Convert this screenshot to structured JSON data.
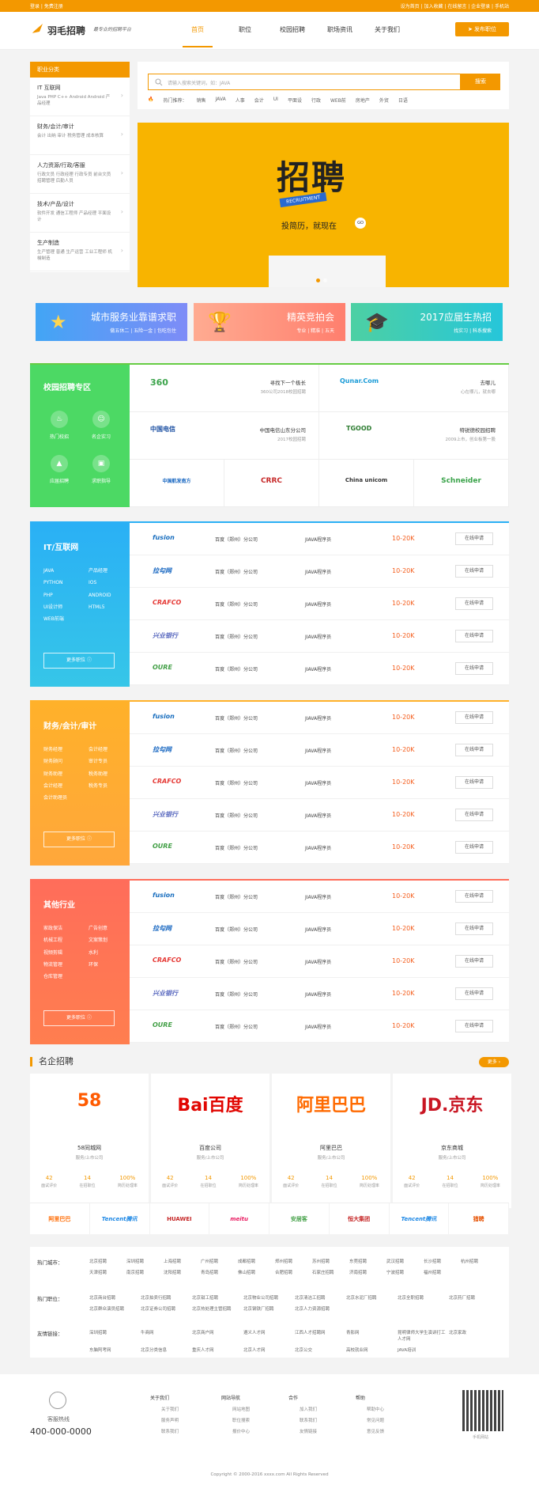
{
  "topbar": {
    "left": "登录 | 免费注册",
    "right": "设为首页 | 加入收藏 | 在线留言 | 企业登录 | 手机站"
  },
  "header": {
    "logo": "羽毛招聘",
    "slogan": "最专业的招聘平台",
    "nav": [
      "首页",
      "职位",
      "校园招聘",
      "职场资讯",
      "关于我们"
    ],
    "post_btn": "发布职位"
  },
  "sidebar": {
    "title": "职业分类",
    "cats": [
      {
        "t": "IT 互联网",
        "s": "Java  PHP  C++  Android  Android  产品经理"
      },
      {
        "t": "财务/会计/审计",
        "s": "会计  出纳  审计  税务管理  成本核算"
      },
      {
        "t": "人力资源/行政/客服",
        "s": "行政文员  行政经理  行政专员  前台文员  招聘管理  后勤人员"
      },
      {
        "t": "技术/产品/设计",
        "s": "软件开发  通信工程师  产品经理  平面设计"
      },
      {
        "t": "生产制造",
        "s": "生产管理  普通  生产运营  工业工程师  机械制造"
      }
    ]
  },
  "search": {
    "placeholder": "请输入搜索关键词，如：JAVA",
    "btn": "搜索",
    "hot_label": "热门推荐：",
    "hot": [
      "销售",
      "JAVA",
      "人事",
      "会计",
      "UI",
      "平面设",
      "行政",
      "WEB前",
      "房地产",
      "外贸",
      "日语"
    ]
  },
  "banner": {
    "title": "招聘",
    "sub": "RECRUITMENT",
    "tag": "投简历，就现在",
    "go": "GO"
  },
  "promos": [
    {
      "t": "城市服务业靠谱求职",
      "s": "做五休二 | 五险一金 | 包吃包住",
      "bg": "#3aa0ff"
    },
    {
      "t": "精英竞拍会",
      "s": "专业 | 精准 | 五天",
      "bg": "#ff8a65"
    },
    {
      "t": "2017应届生热招",
      "s": "找实习 | 科系搜索",
      "bg": "#26c6b0"
    }
  ],
  "campus": {
    "title": "校园招聘专区",
    "icons": [
      "热门校招",
      "名企实习",
      "应届招聘",
      "求职指导"
    ],
    "companies": [
      {
        "logo": "360",
        "name": "寻找下一个极长",
        "sub": "360公司2018校园招聘"
      },
      {
        "logo": "Qunar.Com",
        "name": "去哪儿",
        "sub": "心在哪儿，就去哪"
      },
      {
        "logo": "中国电信",
        "name": "中国电信山东分公司",
        "sub": "2017校园招聘"
      },
      {
        "logo": "TGOOD",
        "name": "特锐德校园招聘",
        "sub": "2009上市，创业板第一股"
      },
      {
        "logo": "中国航发南方"
      },
      {
        "logo": "CRRC"
      },
      {
        "logo": "China unicom"
      },
      {
        "logo": "Schneider"
      }
    ]
  },
  "sections": [
    {
      "title": "IT/互联网",
      "color1": "#2ab0f5",
      "color2": "#36c6e8",
      "items": [
        "JAVA",
        "产品经理",
        "PYTHON",
        "IOS",
        "PHP",
        "ANDROID",
        "UI设计师",
        "HTML5",
        "WEB前端"
      ],
      "more": "更多职位"
    },
    {
      "title": "财务/会计/审计",
      "color1": "#ffb12a",
      "color2": "#ffa73b",
      "items": [
        "财务经理",
        "会计经理",
        "财务顾问",
        "审计专员",
        "财务助理",
        "税务助理",
        "会计经理",
        "税务专员",
        "会计助理员"
      ],
      "more": "更多职位"
    },
    {
      "title": "其他行业",
      "color1": "#ff6d5a",
      "color2": "#ff7e4f",
      "items": [
        "家政保洁",
        "广告创意",
        "机械工程",
        "文案策划",
        "视频剪辑",
        "水利",
        "物流管理",
        "环保",
        "仓库管理"
      ],
      "more": "更多职位"
    }
  ],
  "jobs": [
    {
      "co": "fusion",
      "cn": "百度（郑州）分公司",
      "jp": "JIAVA程序员",
      "sal": "10-20K",
      "ap": "在线申请"
    },
    {
      "co": "拉勾网",
      "cn": "百度（郑州）分公司",
      "jp": "JIAVA程序员",
      "sal": "10-20K",
      "ap": "在线申请"
    },
    {
      "co": "CRAFCO",
      "cn": "百度（郑州）分公司",
      "jp": "JIAVA程序员",
      "sal": "10-20K",
      "ap": "在线申请"
    },
    {
      "co": "兴业银行",
      "cn": "百度（郑州）分公司",
      "jp": "JIAVA程序员",
      "sal": "10-20K",
      "ap": "在线申请"
    },
    {
      "co": "OURE",
      "cn": "百度（郑州）分公司",
      "jp": "JIAVA程序员",
      "sal": "10-20K",
      "ap": "在线申请"
    }
  ],
  "famous": {
    "title": "名企招聘",
    "more": "更多",
    "cards": [
      {
        "logo": "58",
        "name": "58同城网",
        "sub": "服务/上市公司",
        "a": "42",
        "b": "14",
        "c": "100%",
        "color": "#ff5a00"
      },
      {
        "logo": "Bai百度",
        "name": "百度公司",
        "sub": "服务/上市公司",
        "a": "42",
        "b": "14",
        "c": "100%",
        "color": "#e10601"
      },
      {
        "logo": "阿里巴巴",
        "name": "阿里巴巴",
        "sub": "服务/上市公司",
        "a": "42",
        "b": "14",
        "c": "100%",
        "color": "#ff6a00"
      },
      {
        "logo": "JD.京东",
        "name": "京东商城",
        "sub": "服务/上市公司",
        "a": "42",
        "b": "14",
        "c": "100%",
        "color": "#c91623"
      }
    ],
    "stat_labels": [
      "面试评价",
      "在招职位",
      "简历处理率"
    ],
    "logos": [
      "阿里巴巴",
      "Tencent腾讯",
      "HUAWEI",
      "meitu",
      "安居客",
      "恒大集团",
      "Tencent腾讯",
      "猎聘"
    ]
  },
  "links": [
    {
      "h": "热门城市：",
      "items": [
        "北京招聘",
        "深圳招聘",
        "上海招聘",
        "广州招聘",
        "成都招聘",
        "郑州招聘",
        "苏州招聘",
        "东莞招聘",
        "武汉招聘",
        "长沙招聘",
        "杭州招聘",
        "天津招聘",
        "南京招聘",
        "沈阳招聘",
        "青岛招聘",
        "佛山招聘",
        "合肥招聘",
        "石家庄招聘",
        "济南招聘",
        "宁波招聘",
        "福州招聘"
      ]
    },
    {
      "h": "热门职位：",
      "items": [
        "北京商台招聘",
        "北京拍卖行招聘",
        "北京钳工招聘",
        "北京物业公司招聘",
        "北京清洁工招聘",
        "北京水泥厂招聘",
        "北京全职招聘",
        "北京药厂招聘",
        "北京群众演员招聘",
        "北京证券公司招聘",
        "北京热处理主管招聘",
        "北京钢铁厂招聘",
        "北京人力资源招聘"
      ]
    },
    {
      "h": "友情链接：",
      "items": [
        "深圳招聘",
        "牛商网",
        "北京商户网",
        "遵义人才网",
        "江西人才招聘网",
        "青影网",
        "昆明律师大学生演讲打工人才网",
        "北京家政",
        "东脑阿考网",
        "北京分类信息",
        "重庆人才网",
        "北京人才网",
        "北京公交",
        "高校就业网",
        "JAVA培训"
      ]
    }
  ],
  "footer": {
    "svc": "客服热线",
    "tel": "400-000-0000",
    "cols": [
      {
        "h": "关于我们",
        "items": [
          "关于我们",
          "服务声明",
          "联系我们"
        ]
      },
      {
        "h": "网站导航",
        "items": [
          "网站地图",
          "职位搜索",
          "报价中心"
        ]
      },
      {
        "h": "合作",
        "items": [
          "加入我们",
          "联系我们",
          "友情链接"
        ]
      },
      {
        "h": "帮助",
        "items": [
          "帮助中心",
          "常见问题",
          "意见反馈"
        ]
      }
    ],
    "qr": "手机网站",
    "copy": "Copyright © 2000-2016 xxxx.com All Rights Reserved"
  }
}
